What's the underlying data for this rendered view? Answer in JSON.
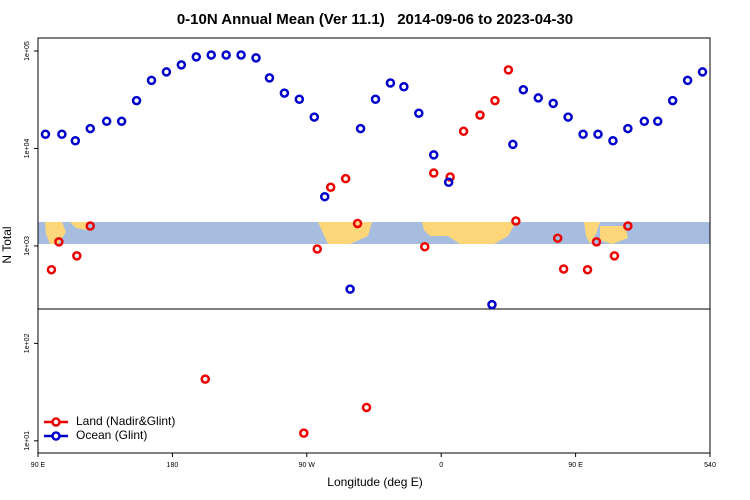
{
  "chart_data": {
    "type": "scatter",
    "title": "0-10N Annual Mean (Ver 11.1)   2014-09-06 to 2023-04-30",
    "x_label": "Longitude (deg E)",
    "y_label": "N Total",
    "xlim": [
      90,
      540
    ],
    "ylim": [
      7.5,
      136000
    ],
    "log_y": true,
    "legend": "lower left",
    "xticks": [
      {
        "value": 90,
        "label": "90 E"
      },
      180,
      {
        "value": 270,
        "label": "90 W"
      },
      {
        "value": 360,
        "label": "0"
      },
      {
        "value": 450,
        "label": "90 E"
      },
      540
    ],
    "yticks": [
      {
        "value": 10,
        "label": "1e+01"
      },
      {
        "value": 100,
        "label": "1e+02"
      },
      {
        "value": 1000,
        "label": "1e+03"
      },
      {
        "value": 10000,
        "label": "1e+04"
      },
      {
        "value": 100000,
        "label": "1e+05"
      }
    ],
    "series": [
      {
        "name": "Land (Nadir&Glint)",
        "color": "#ee0000",
        "x": [
          99,
          104,
          116,
          125,
          202,
          268,
          277,
          286,
          296,
          304,
          310,
          349,
          355,
          366,
          375,
          386,
          396,
          405,
          410,
          438,
          442,
          458,
          464,
          476,
          485
        ],
        "values": [
          570,
          1100,
          790,
          1600,
          43,
          12,
          930,
          4000,
          4900,
          1700,
          22,
          980,
          5600,
          5100,
          15000,
          22000,
          31000,
          64000,
          1800,
          1200,
          580,
          570,
          1100,
          790,
          1600
        ]
      },
      {
        "name": "Ocean (Glint)",
        "color": "#0000cc",
        "x": [
          95,
          106,
          115,
          125,
          136,
          146,
          156,
          166,
          176,
          186,
          196,
          206,
          216,
          226,
          236,
          245,
          255,
          265,
          275,
          282,
          299,
          306,
          316,
          326,
          335,
          345,
          355,
          365,
          394,
          408,
          415,
          425,
          435,
          445,
          455,
          465,
          475,
          485,
          496,
          505,
          515,
          525,
          535
        ],
        "values": [
          14000,
          14000,
          12000,
          16000,
          19000,
          19000,
          31000,
          50000,
          61000,
          72000,
          87000,
          91000,
          91000,
          91000,
          85000,
          53000,
          37000,
          32000,
          21000,
          3200,
          360,
          16000,
          32000,
          47000,
          43000,
          23000,
          8600,
          4500,
          250,
          11000,
          40000,
          33000,
          29000,
          21000,
          14000,
          14000,
          12000,
          16000,
          19000,
          19000,
          31000,
          50000,
          61000
        ]
      }
    ]
  }
}
